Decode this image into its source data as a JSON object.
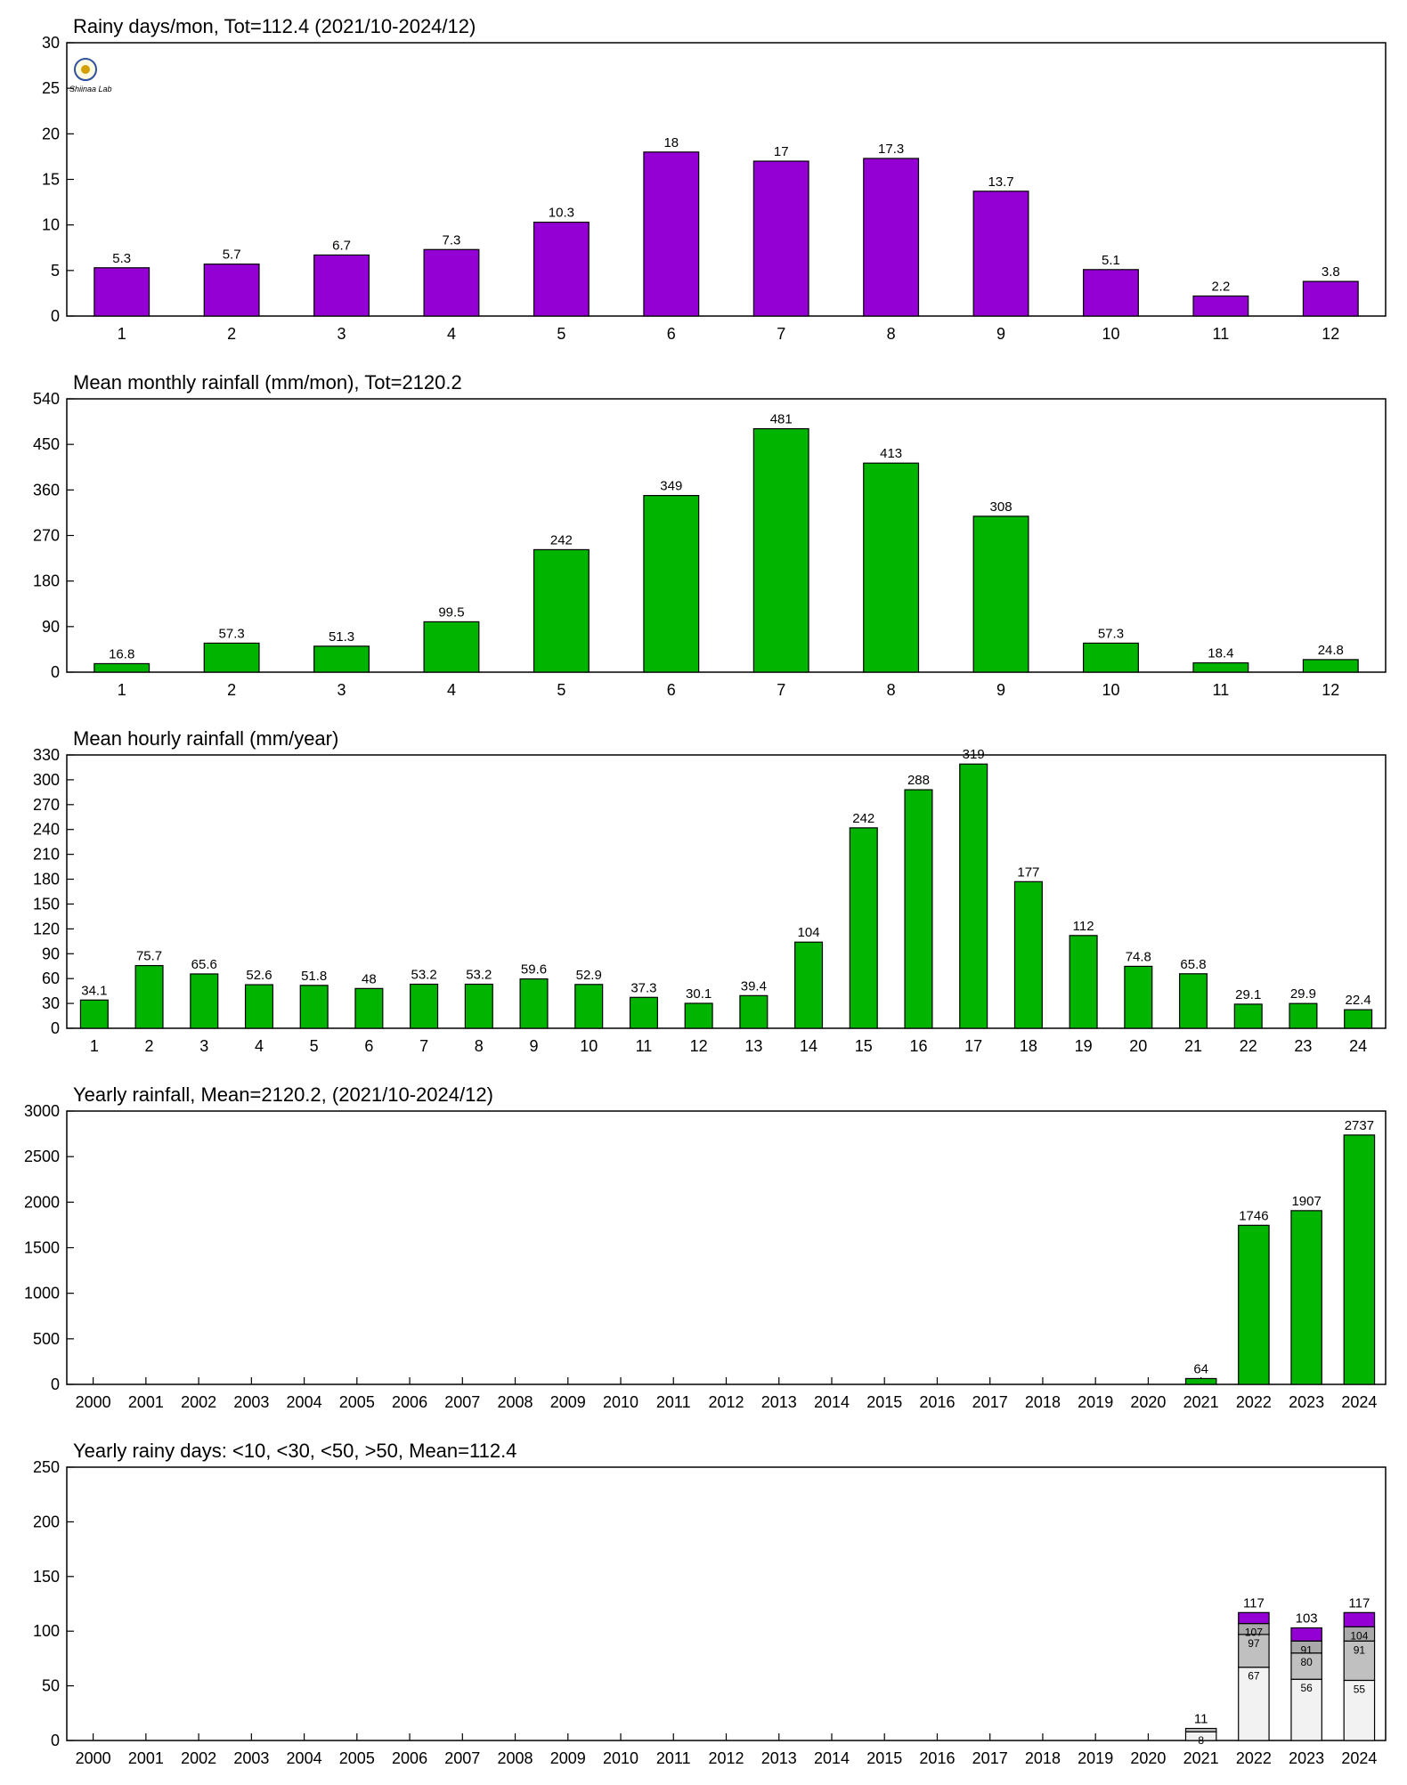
{
  "colors": {
    "purple": "#9400d3",
    "green": "#00b400",
    "white_seg": "#f2f2f2",
    "gray_seg": "#c0c0c0",
    "dark_seg": "#a9a9a9",
    "axis": "#000000"
  },
  "logo": {
    "label": "Shiinaa Lab"
  },
  "chart_data": [
    {
      "type": "bar",
      "title": "Rainy days/mon, Tot=112.4 (2021/10-2024/12)",
      "bar_color": "purple",
      "categories": [
        "1",
        "2",
        "3",
        "4",
        "5",
        "6",
        "7",
        "8",
        "9",
        "10",
        "11",
        "12"
      ],
      "values": [
        5.3,
        5.7,
        6.7,
        7.3,
        10.3,
        18,
        17,
        17.3,
        13.7,
        5.1,
        2.2,
        3.8
      ],
      "data_labels": [
        "5.3",
        "5.7",
        "6.7",
        "7.3",
        "10.3",
        "18",
        "17",
        "17.3",
        "13.7",
        "5.1",
        "2.2",
        "3.8"
      ],
      "ylim": [
        0,
        30
      ],
      "yticks": [
        0,
        5,
        10,
        15,
        20,
        25,
        30
      ]
    },
    {
      "type": "bar",
      "title": "Mean monthly rainfall (mm/mon), Tot=2120.2",
      "bar_color": "green",
      "categories": [
        "1",
        "2",
        "3",
        "4",
        "5",
        "6",
        "7",
        "8",
        "9",
        "10",
        "11",
        "12"
      ],
      "values": [
        16.8,
        57.3,
        51.3,
        99.5,
        242,
        349,
        481,
        413,
        308,
        57.3,
        18.4,
        24.8
      ],
      "data_labels": [
        "16.8",
        "57.3",
        "51.3",
        "99.5",
        "242",
        "349",
        "481",
        "413",
        "308",
        "57.3",
        "18.4",
        "24.8"
      ],
      "ylim": [
        0,
        540
      ],
      "yticks": [
        0,
        90,
        180,
        270,
        360,
        450,
        540
      ]
    },
    {
      "type": "bar",
      "title": "Mean hourly rainfall (mm/year)",
      "bar_color": "green",
      "categories": [
        "1",
        "2",
        "3",
        "4",
        "5",
        "6",
        "7",
        "8",
        "9",
        "10",
        "11",
        "12",
        "13",
        "14",
        "15",
        "16",
        "17",
        "18",
        "19",
        "20",
        "21",
        "22",
        "23",
        "24"
      ],
      "values": [
        34.1,
        75.7,
        65.6,
        52.6,
        51.8,
        48,
        53.2,
        53.2,
        59.6,
        52.9,
        37.3,
        30.1,
        39.4,
        104,
        242,
        288,
        319,
        177,
        112,
        74.8,
        65.8,
        29.1,
        29.9,
        22.4
      ],
      "data_labels": [
        "34.1",
        "75.7",
        "65.6",
        "52.6",
        "51.8",
        "48",
        "53.2",
        "53.2",
        "59.6",
        "52.9",
        "37.3",
        "30.1",
        "39.4",
        "104",
        "242",
        "288",
        "319",
        "177",
        "112",
        "74.8",
        "65.8",
        "29.1",
        "29.9",
        "22.4"
      ],
      "ylim": [
        0,
        330
      ],
      "yticks": [
        0,
        30,
        60,
        90,
        120,
        150,
        180,
        210,
        240,
        270,
        300,
        330
      ]
    },
    {
      "type": "bar",
      "title": "Yearly rainfall, Mean=2120.2, (2021/10-2024/12)",
      "bar_color": "green",
      "categories": [
        "2000",
        "2001",
        "2002",
        "2003",
        "2004",
        "2005",
        "2006",
        "2007",
        "2008",
        "2009",
        "2010",
        "2011",
        "2012",
        "2013",
        "2014",
        "2015",
        "2016",
        "2017",
        "2018",
        "2019",
        "2020",
        "2021",
        "2022",
        "2023",
        "2024"
      ],
      "values": [
        null,
        null,
        null,
        null,
        null,
        null,
        null,
        null,
        null,
        null,
        null,
        null,
        null,
        null,
        null,
        null,
        null,
        null,
        null,
        null,
        null,
        64,
        1746,
        1907,
        2737
      ],
      "data_labels": [
        "",
        "",
        "",
        "",
        "",
        "",
        "",
        "",
        "",
        "",
        "",
        "",
        "",
        "",
        "",
        "",
        "",
        "",
        "",
        "",
        "",
        "64",
        "1746",
        "1907",
        "2737"
      ],
      "ylim": [
        0,
        3000
      ],
      "yticks": [
        0,
        500,
        1000,
        1500,
        2000,
        2500,
        3000
      ]
    },
    {
      "type": "bar",
      "stacked": true,
      "title": "Yearly rainy days: <10, <30, <50, >50, Mean=112.4",
      "categories": [
        "2000",
        "2001",
        "2002",
        "2003",
        "2004",
        "2005",
        "2006",
        "2007",
        "2008",
        "2009",
        "2010",
        "2011",
        "2012",
        "2013",
        "2014",
        "2015",
        "2016",
        "2017",
        "2018",
        "2019",
        "2020",
        "2021",
        "2022",
        "2023",
        "2024"
      ],
      "stacks": [
        {
          "category": "2021",
          "cumulative": [
            8,
            11,
            11,
            11
          ],
          "segment_labels": [
            "8",
            "",
            "",
            ""
          ],
          "total_label": "11"
        },
        {
          "category": "2022",
          "cumulative": [
            67,
            97,
            107,
            117
          ],
          "segment_labels": [
            "67",
            "97",
            "107",
            ""
          ],
          "total_label": "117"
        },
        {
          "category": "2023",
          "cumulative": [
            56,
            80,
            91,
            103
          ],
          "segment_labels": [
            "56",
            "80",
            "91",
            ""
          ],
          "total_label": "103"
        },
        {
          "category": "2024",
          "cumulative": [
            55,
            91,
            104,
            117
          ],
          "segment_labels": [
            "55",
            "91",
            "104",
            ""
          ],
          "total_label": "117"
        }
      ],
      "segment_colors": [
        "white_seg",
        "gray_seg",
        "dark_seg",
        "purple"
      ],
      "ylim": [
        0,
        250
      ],
      "yticks": [
        0,
        50,
        100,
        150,
        200,
        250
      ]
    }
  ]
}
